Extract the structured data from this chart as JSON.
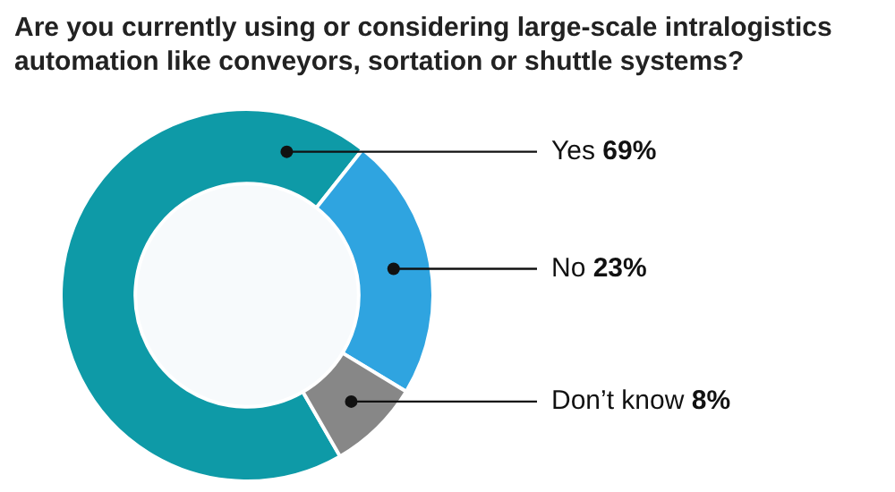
{
  "chart_data": {
    "type": "donut",
    "title": "Are you currently using or considering large-scale intralogistics automation like conveyors, sortation or shuttle systems?",
    "categories": [
      "Yes",
      "No",
      "Don’t know"
    ],
    "values": [
      69,
      23,
      8
    ],
    "value_labels": [
      "69%",
      "23%",
      "8%"
    ],
    "colors": [
      "#0e9aa7",
      "#2fa4e0",
      "#878787"
    ]
  }
}
